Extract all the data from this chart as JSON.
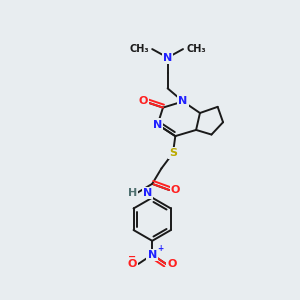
{
  "background_color": "#e8edf0",
  "bond_color": "#1a1a1a",
  "atom_colors": {
    "N": "#2020ff",
    "O": "#ff2020",
    "S": "#bbaa00",
    "C": "#1a1a1a",
    "H": "#507070"
  },
  "figsize": [
    3.0,
    3.0
  ],
  "dpi": 100,
  "lw": 1.4,
  "fs": 8.0,
  "fs_small": 7.0
}
